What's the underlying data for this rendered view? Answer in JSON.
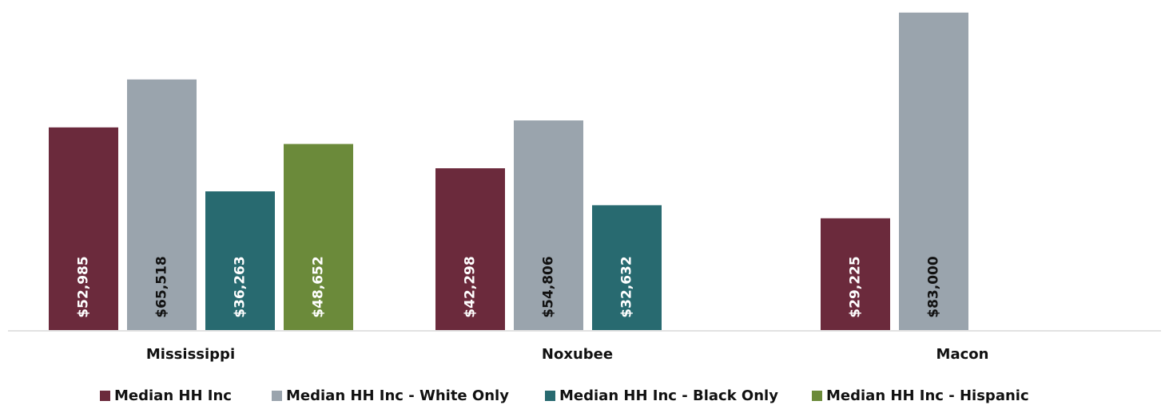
{
  "chart_data": {
    "type": "bar",
    "categories": [
      "Mississippi",
      "Noxubee",
      "Macon"
    ],
    "series": [
      {
        "name": "Median HH Inc",
        "values": [
          52985,
          42298,
          29225
        ],
        "labels": [
          "$52,985",
          "$42,298",
          "$29,225"
        ]
      },
      {
        "name": "Median HH Inc - White Only",
        "values": [
          65518,
          54806,
          83000
        ],
        "labels": [
          "$65,518",
          "$54,806",
          "$83,000"
        ]
      },
      {
        "name": "Median HH Inc - Black Only",
        "values": [
          36263,
          32632,
          null
        ],
        "labels": [
          "$36,263",
          "$32,632",
          ""
        ]
      },
      {
        "name": "Median HH Inc - Hispanic",
        "values": [
          48652,
          null,
          null
        ],
        "labels": [
          "$48,652",
          "",
          ""
        ]
      }
    ],
    "colors": [
      "#6b2a3c",
      "#9aa4ad",
      "#286a70",
      "#6b8a3a"
    ],
    "label_colors": [
      "#ffffff",
      "#111111",
      "#ffffff",
      "#ffffff"
    ],
    "title": "",
    "xlabel": "",
    "ylabel": "",
    "ylim": [
      0,
      84000
    ],
    "grid": false,
    "legend": "bottom"
  }
}
